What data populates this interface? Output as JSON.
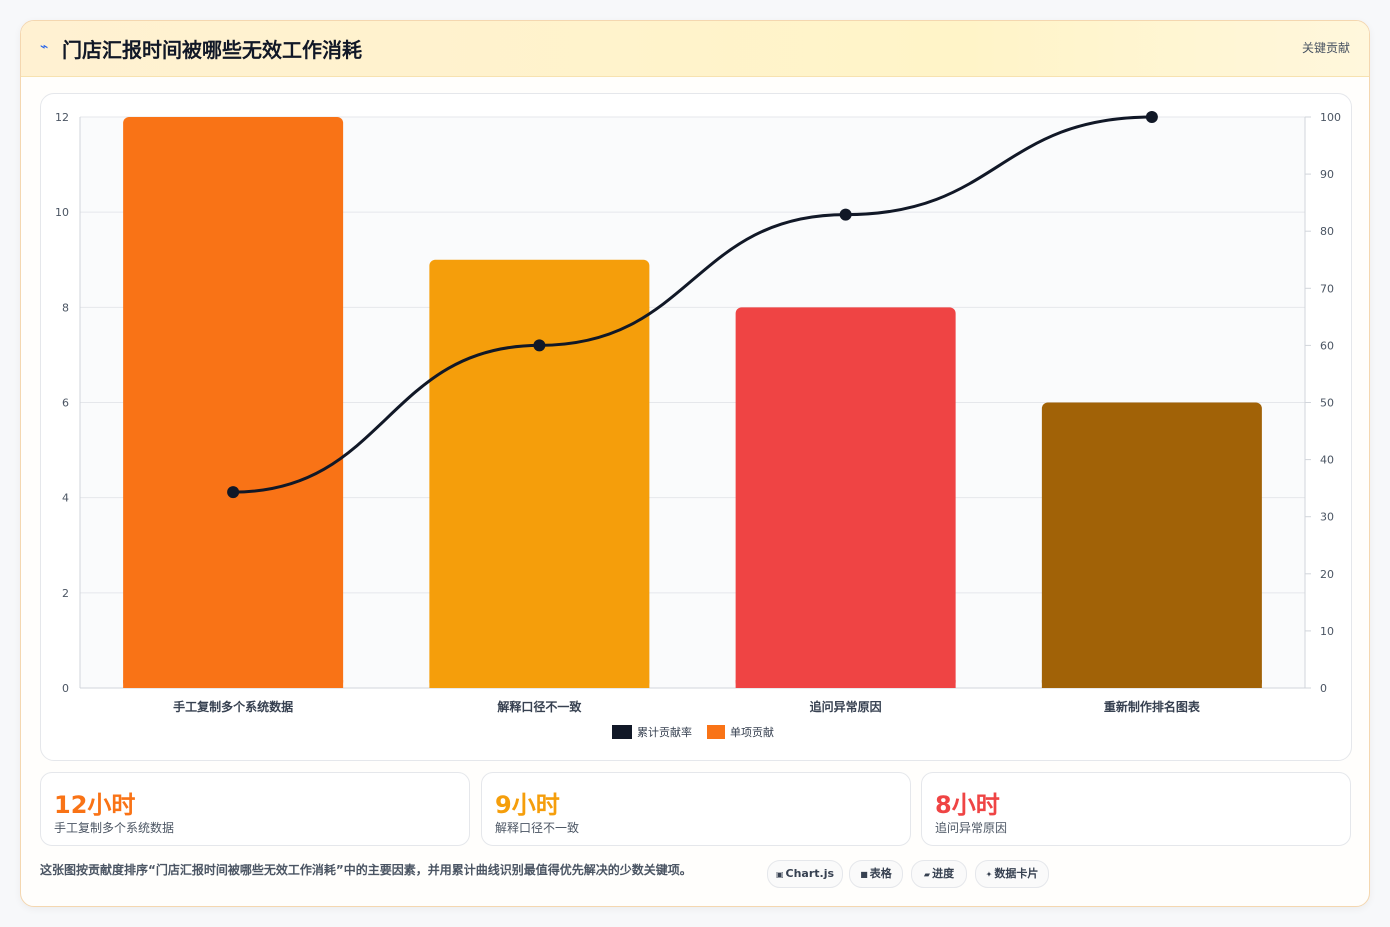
{
  "header": {
    "icon": "lightning-icon",
    "title": "门店汇报时间被哪些无效工作消耗",
    "tag": "关键贡献"
  },
  "chart_data": {
    "type": "bar",
    "categories": [
      "手工复制多个系统数据",
      "解释口径不一致",
      "追问异常原因",
      "重新制作排名图表"
    ],
    "series": [
      {
        "name": "单项贡献",
        "type": "bar",
        "axis": "left",
        "values": [
          12,
          9,
          8,
          6
        ],
        "colors": [
          "#F97316",
          "#F59E0B",
          "#EF4444",
          "#A16207"
        ]
      },
      {
        "name": "累计贡献率",
        "type": "line",
        "axis": "right",
        "values": [
          34.3,
          60,
          82.9,
          100
        ],
        "color": "#111827"
      }
    ],
    "left_axis": {
      "ylim": [
        0,
        12
      ],
      "ticks": [
        0,
        2,
        4,
        6,
        8,
        10,
        12
      ]
    },
    "right_axis": {
      "ylim": [
        0,
        100
      ],
      "ticks": [
        0,
        10,
        20,
        30,
        40,
        50,
        60,
        70,
        80,
        90,
        100
      ]
    },
    "grid": true,
    "legend_position": "bottom",
    "legend": [
      {
        "name": "累计贡献率",
        "color": "#111827"
      },
      {
        "name": "单项贡献",
        "color": "#F97316"
      }
    ]
  },
  "stats": [
    {
      "value": "12小时",
      "label": "手工复制多个系统数据",
      "color": "#F97316"
    },
    {
      "value": "9小时",
      "label": "解释口径不一致",
      "color": "#F59E0B"
    },
    {
      "value": "8小时",
      "label": "追问异常原因",
      "color": "#EF4444"
    }
  ],
  "footer": {
    "description": "这张图按贡献度排序“门店汇报时间被哪些无效工作消耗”中的主要因素，并用累计曲线识别最值得优先解决的少数关键项。",
    "buttons": [
      {
        "icon": "chart-icon",
        "label": "Chart.js"
      },
      {
        "icon": "table-icon",
        "label": "表格"
      },
      {
        "icon": "progress-icon",
        "label": "进度"
      },
      {
        "icon": "sparkle-icon",
        "label": "数据卡片"
      }
    ]
  }
}
